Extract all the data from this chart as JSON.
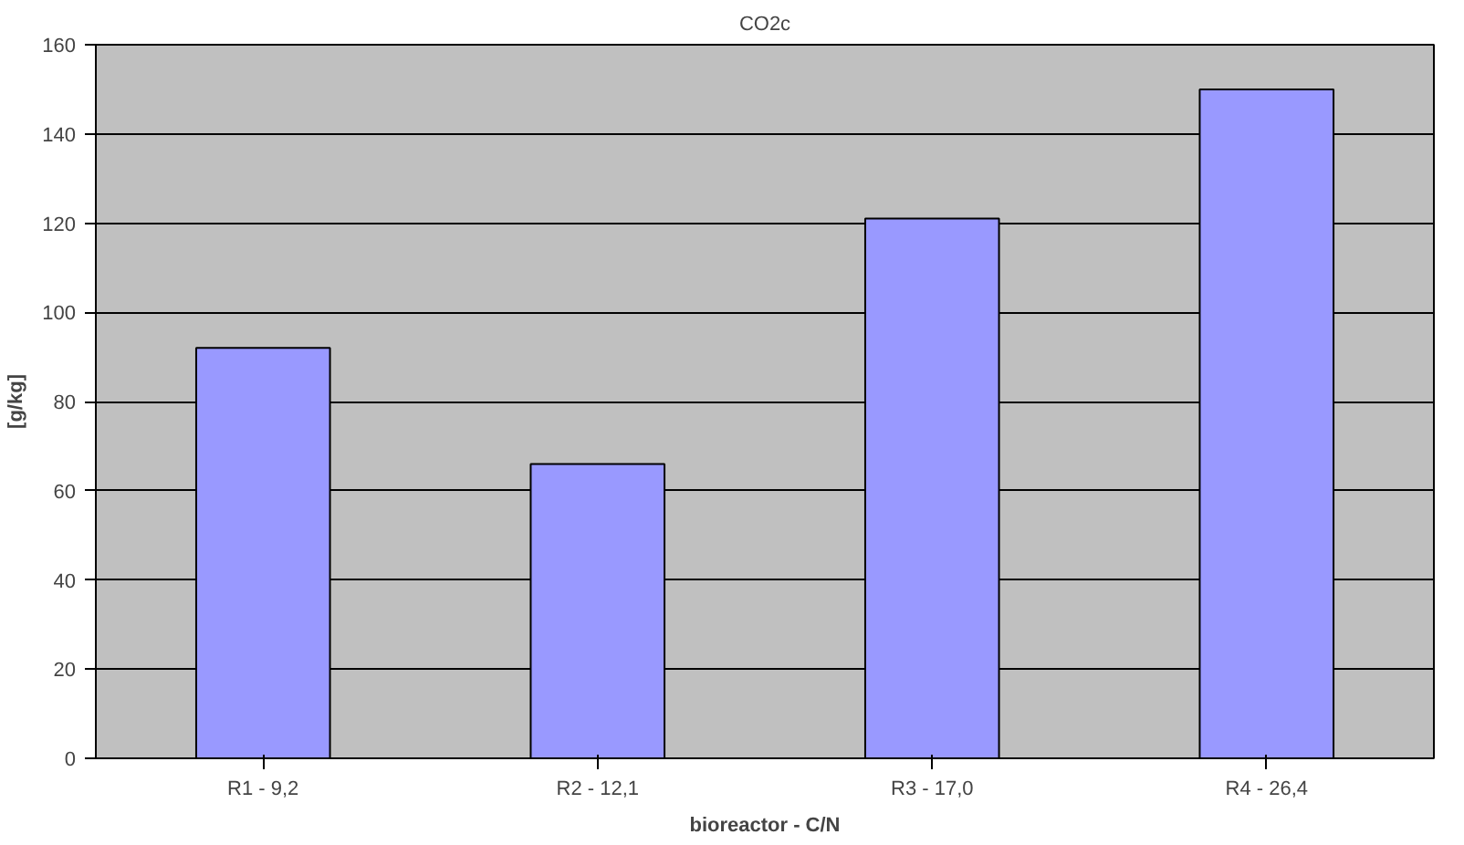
{
  "chart_data": {
    "type": "bar",
    "title": "CO2c",
    "xlabel": "bioreactor - C/N",
    "ylabel": "[g/kg]",
    "categories": [
      "R1 - 9,2",
      "R2 - 12,1",
      "R3 - 17,0",
      "R4 - 26,4"
    ],
    "values": [
      92,
      66,
      121,
      150
    ],
    "color": "#9999ff",
    "ylim": [
      0,
      160
    ],
    "yticks": [
      0,
      20,
      40,
      60,
      80,
      100,
      120,
      140,
      160
    ],
    "grid": "y"
  }
}
